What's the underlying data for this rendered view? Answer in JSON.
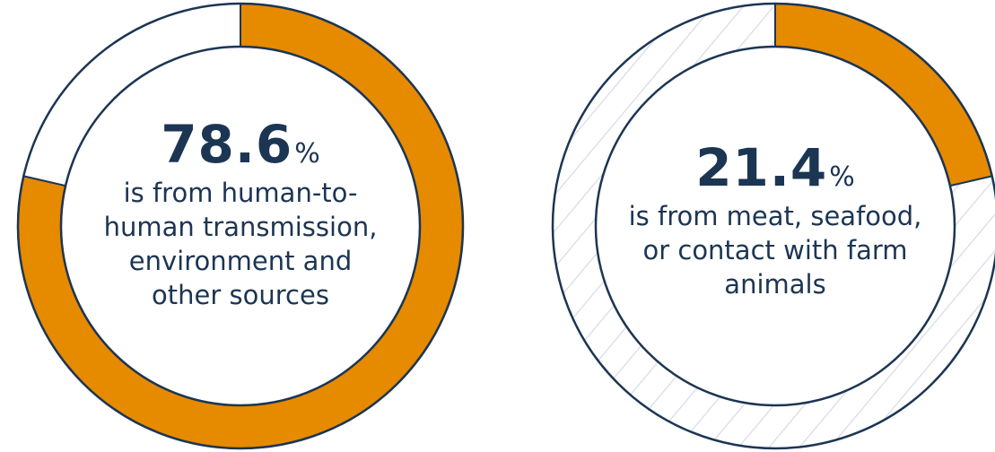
{
  "colors": {
    "highlight": "#e68a00",
    "outline": "#1c3553",
    "hatch": "#d7dbe6",
    "text": "#1c3553"
  },
  "chart_data": [
    {
      "type": "pie",
      "value": 78.6,
      "percent_sign": "%",
      "description": "is from human-to-human transmission, environment and other sources",
      "description_lines": [
        "is from human-to-",
        "human transmission,",
        "environment and",
        "other sources"
      ],
      "unfilled_style": "plain"
    },
    {
      "type": "pie",
      "value": 21.4,
      "percent_sign": "%",
      "description": "is from meat, seafood, or contact with farm animals",
      "description_lines": [
        "is from meat, seafood,",
        "or contact with farm",
        "animals"
      ],
      "unfilled_style": "hatched"
    }
  ]
}
